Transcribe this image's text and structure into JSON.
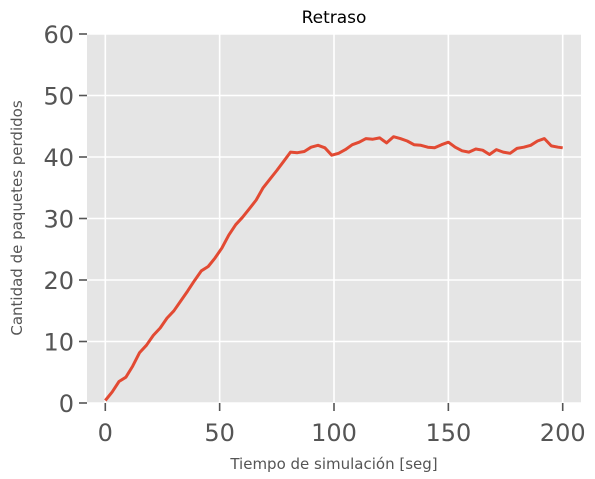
{
  "chart_data": {
    "type": "line",
    "title": "Retraso",
    "xlabel": "Tiempo de simulación [seg]",
    "ylabel": "Cantidad de paquetes perdidos",
    "xlim": [
      -8,
      208
    ],
    "ylim": [
      0,
      60
    ],
    "x_ticks": [
      0,
      50,
      100,
      150,
      200
    ],
    "y_ticks": [
      0,
      10,
      20,
      30,
      40,
      50,
      60
    ],
    "grid": true,
    "colors": {
      "plot_background": "#e5e5e5",
      "series": "#e24a33"
    },
    "series": [
      {
        "points": [
          [
            0,
            0.4
          ],
          [
            3,
            1.8
          ],
          [
            6,
            3.5
          ],
          [
            9,
            4.2
          ],
          [
            12,
            6.0
          ],
          [
            15,
            8.2
          ],
          [
            18,
            9.4
          ],
          [
            21,
            11.0
          ],
          [
            24,
            12.2
          ],
          [
            27,
            13.8
          ],
          [
            30,
            15.0
          ],
          [
            33,
            16.6
          ],
          [
            36,
            18.2
          ],
          [
            39,
            19.9
          ],
          [
            42,
            21.5
          ],
          [
            45,
            22.2
          ],
          [
            48,
            23.6
          ],
          [
            51,
            25.2
          ],
          [
            54,
            27.3
          ],
          [
            57,
            29.0
          ],
          [
            60,
            30.2
          ],
          [
            63,
            31.6
          ],
          [
            66,
            33.0
          ],
          [
            69,
            35.0
          ],
          [
            72,
            36.4
          ],
          [
            75,
            37.8
          ],
          [
            78,
            39.3
          ],
          [
            81,
            40.8
          ],
          [
            84,
            40.7
          ],
          [
            87,
            40.9
          ],
          [
            90,
            41.6
          ],
          [
            93,
            41.9
          ],
          [
            96,
            41.5
          ],
          [
            99,
            40.3
          ],
          [
            102,
            40.6
          ],
          [
            105,
            41.2
          ],
          [
            108,
            42.0
          ],
          [
            111,
            42.4
          ],
          [
            114,
            43.0
          ],
          [
            117,
            42.9
          ],
          [
            120,
            43.1
          ],
          [
            123,
            42.3
          ],
          [
            126,
            43.3
          ],
          [
            129,
            43.0
          ],
          [
            132,
            42.6
          ],
          [
            135,
            42.0
          ],
          [
            138,
            41.9
          ],
          [
            141,
            41.6
          ],
          [
            144,
            41.5
          ],
          [
            147,
            42.0
          ],
          [
            150,
            42.4
          ],
          [
            153,
            41.6
          ],
          [
            156,
            41.0
          ],
          [
            159,
            40.8
          ],
          [
            162,
            41.3
          ],
          [
            165,
            41.1
          ],
          [
            168,
            40.4
          ],
          [
            171,
            41.2
          ],
          [
            174,
            40.8
          ],
          [
            177,
            40.6
          ],
          [
            180,
            41.4
          ],
          [
            183,
            41.6
          ],
          [
            186,
            41.9
          ],
          [
            189,
            42.6
          ],
          [
            192,
            43.0
          ],
          [
            195,
            41.8
          ],
          [
            198,
            41.6
          ],
          [
            200,
            41.5
          ]
        ]
      }
    ]
  }
}
